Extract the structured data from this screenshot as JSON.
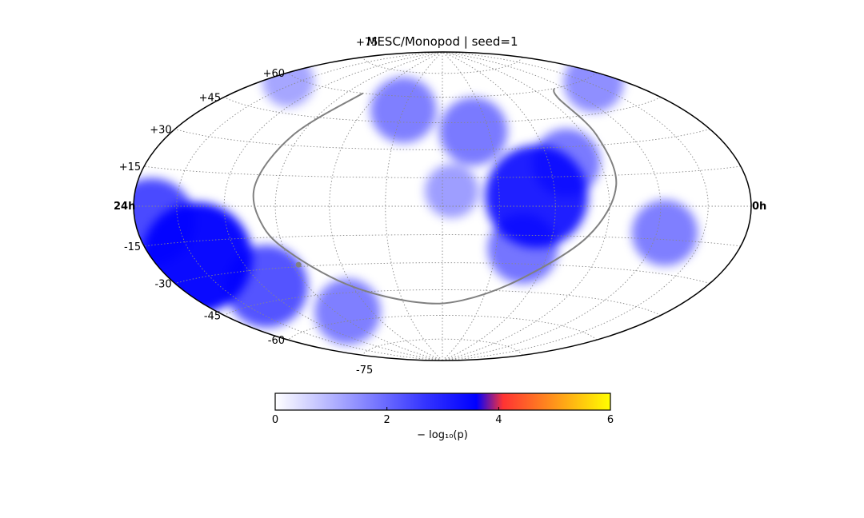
{
  "chart_data": {
    "type": "heatmap",
    "projection": "hammer-aitoff",
    "title": "MESC/Monopod | seed=1",
    "ra_labels": {
      "left": "24h",
      "right": "0h"
    },
    "dec_labels": [
      {
        "dec": 75,
        "text": "+75"
      },
      {
        "dec": 60,
        "text": "+60"
      },
      {
        "dec": 45,
        "text": "+45"
      },
      {
        "dec": 30,
        "text": "+30"
      },
      {
        "dec": 15,
        "text": "+15"
      },
      {
        "dec": -15,
        "text": "-15"
      },
      {
        "dec": -30,
        "text": "-30"
      },
      {
        "dec": -45,
        "text": "-45"
      },
      {
        "dec": -60,
        "text": "-60"
      },
      {
        "dec": -75,
        "text": "-75"
      }
    ],
    "graticule": {
      "lon_step_deg": 30,
      "lat_step_deg": 15,
      "style": "dotted"
    },
    "hotspots": [
      {
        "lon": 148,
        "lat": -22,
        "value": 3.4
      },
      {
        "lon": 168,
        "lat": -6,
        "value": 2.2
      },
      {
        "lon": 118,
        "lat": -38,
        "value": 2.0
      },
      {
        "lon": 80,
        "lat": -55,
        "value": 1.2
      },
      {
        "lon": -50,
        "lat": 5,
        "value": 3.0
      },
      {
        "lon": -70,
        "lat": 22,
        "value": 1.3
      },
      {
        "lon": -45,
        "lat": -22,
        "value": 1.4
      },
      {
        "lon": -125,
        "lat": -12,
        "value": 1.2
      },
      {
        "lon": -20,
        "lat": 40,
        "value": 1.3
      },
      {
        "lon": 30,
        "lat": 52,
        "value": 1.2
      },
      {
        "lon": -5,
        "lat": 8,
        "value": 0.6
      },
      {
        "lon": -155,
        "lat": 58,
        "value": 0.9
      },
      {
        "lon": 160,
        "lat": 58,
        "value": 0.5
      }
    ],
    "galactic_plane_points": [
      {
        "lon": 75,
        "lat": 60
      },
      {
        "lon": 95,
        "lat": 35
      },
      {
        "lon": 103,
        "lat": 10
      },
      {
        "lon": 98,
        "lat": -10
      },
      {
        "lon": 85,
        "lat": -25
      },
      {
        "lon": 60,
        "lat": -42
      },
      {
        "lon": 20,
        "lat": -52
      },
      {
        "lon": -15,
        "lat": -51
      },
      {
        "lon": -50,
        "lat": -38
      },
      {
        "lon": -80,
        "lat": -15
      },
      {
        "lon": -95,
        "lat": 10
      },
      {
        "lon": -98,
        "lat": 35
      },
      {
        "lon": -100,
        "lat": 55
      },
      {
        "lon": -110,
        "lat": 60
      }
    ],
    "galactic_center": {
      "lon": 86,
      "lat": -29
    },
    "colorbar": {
      "min": 0,
      "max": 6,
      "ticks": [
        "0",
        "2",
        "4",
        "6"
      ],
      "label": "− log₁₀(p)",
      "colors": [
        "#ffffff",
        "#0000ff",
        "#ff3333",
        "#ffff00"
      ]
    }
  }
}
